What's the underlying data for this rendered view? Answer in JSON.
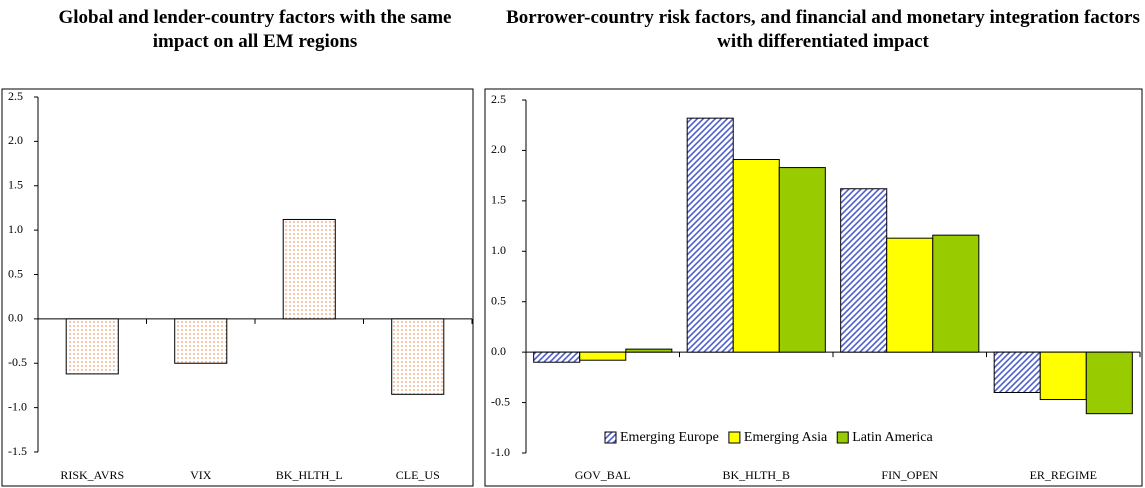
{
  "chart_data": [
    {
      "type": "bar",
      "title": "Global and lender-country factors with the same impact on all EM regions",
      "categories": [
        "RISK_AVRS",
        "VIX",
        "BK_HLTH_L",
        "CLE_US"
      ],
      "values": [
        -0.62,
        -0.5,
        1.12,
        -0.85
      ],
      "color": "#f4a070",
      "ylim": [
        -1.5,
        2.5
      ],
      "yticks": [
        {
          "value": -1.5,
          "label": "-1.5"
        },
        {
          "value": -1,
          "label": "-1.0"
        },
        {
          "value": -0.5,
          "label": "-0.5"
        },
        {
          "value": 0,
          "label": "0.0"
        },
        {
          "value": 0.5,
          "label": "0.5"
        },
        {
          "value": 1,
          "label": "1.0"
        },
        {
          "value": 1.5,
          "label": "1.5"
        },
        {
          "value": 2,
          "label": "2.0"
        },
        {
          "value": 2.5,
          "label": "2.5"
        }
      ]
    },
    {
      "type": "bar",
      "title": "Borrower-country risk factors, and financial and monetary integration factors with differentiated impact",
      "categories": [
        "GOV_BAL",
        "BK_HLTH_B",
        "FIN_OPEN",
        "ER_REGIME"
      ],
      "series": [
        {
          "name": "Emerging Europe",
          "color": "#5060d0",
          "values": [
            -0.1,
            2.32,
            1.62,
            -0.4
          ]
        },
        {
          "name": "Emerging Asia",
          "color": "#ffff00",
          "values": [
            -0.08,
            1.91,
            1.13,
            -0.47
          ]
        },
        {
          "name": "Latin America",
          "color": "#99cc00",
          "values": [
            0.03,
            1.83,
            1.16,
            -0.61
          ]
        }
      ],
      "ylim": [
        -1,
        2.5
      ],
      "yticks": [
        {
          "value": -1,
          "label": "-1.0"
        },
        {
          "value": -0.5,
          "label": "-0.5"
        },
        {
          "value": 0,
          "label": "0.0"
        },
        {
          "value": 0.5,
          "label": "0.5"
        },
        {
          "value": 1,
          "label": "1.0"
        },
        {
          "value": 1.5,
          "label": "1.5"
        },
        {
          "value": 2,
          "label": "2.0"
        },
        {
          "value": 2.5,
          "label": "2.5"
        }
      ],
      "legend": "bottom"
    }
  ]
}
